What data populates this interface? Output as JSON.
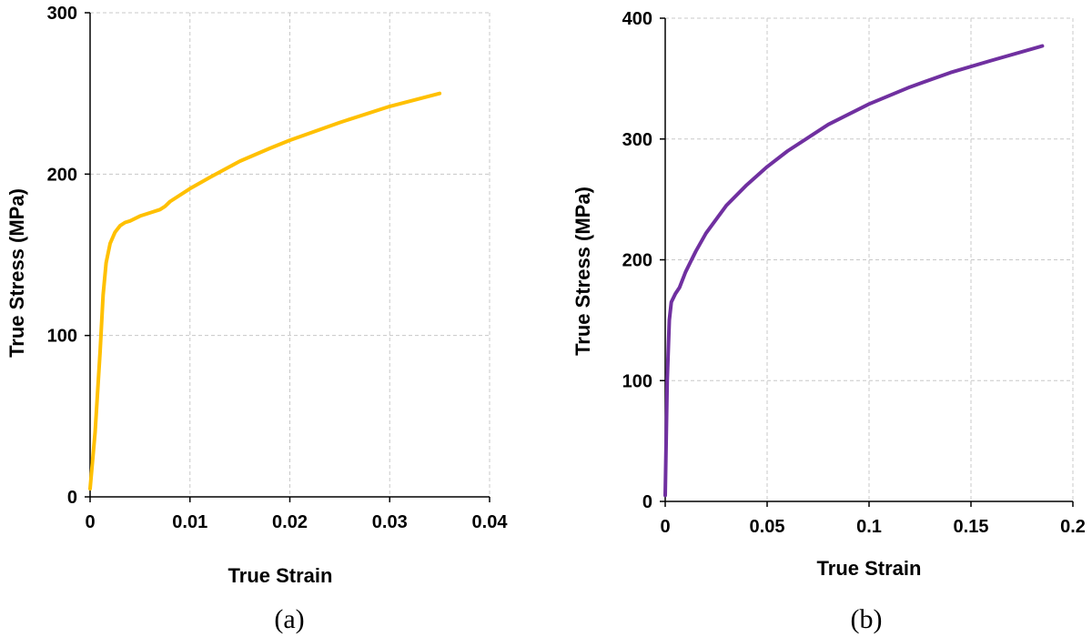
{
  "chart_data": [
    {
      "type": "line",
      "panel_label": "(a)",
      "xlabel": "True Strain",
      "ylabel": "True Stress (MPa)",
      "xlim": [
        0,
        0.04
      ],
      "ylim": [
        0,
        300
      ],
      "xticks": [
        0,
        0.01,
        0.02,
        0.03,
        0.04
      ],
      "xtick_labels": [
        "0",
        "0.01",
        "0.02",
        "0.03",
        "0.04"
      ],
      "yticks": [
        0,
        100,
        200,
        300
      ],
      "ytick_labels": [
        "0",
        "100",
        "200",
        "300"
      ],
      "grid": true,
      "legend": "none",
      "series": [
        {
          "color": "#FFC000",
          "x": [
            0,
            0.0005,
            0.001,
            0.0013,
            0.0016,
            0.002,
            0.0025,
            0.003,
            0.0035,
            0.004,
            0.005,
            0.006,
            0.007,
            0.0075,
            0.008,
            0.01,
            0.012,
            0.015,
            0.018,
            0.02,
            0.025,
            0.03,
            0.035
          ],
          "y": [
            5,
            40,
            90,
            125,
            145,
            157,
            164,
            168,
            170,
            171,
            174,
            176,
            178,
            180,
            183,
            191,
            198,
            208,
            216,
            221,
            232,
            242,
            250
          ]
        }
      ]
    },
    {
      "type": "line",
      "panel_label": "(b)",
      "xlabel": "True Strain",
      "ylabel": "True Stress (MPa)",
      "xlim": [
        0,
        0.2
      ],
      "ylim": [
        0,
        400
      ],
      "xticks": [
        0,
        0.05,
        0.1,
        0.15,
        0.2
      ],
      "xtick_labels": [
        "0",
        "0.05",
        "0.1",
        "0.15",
        "0.2"
      ],
      "yticks": [
        0,
        100,
        200,
        300,
        400
      ],
      "ytick_labels": [
        "0",
        "100",
        "200",
        "300",
        "400"
      ],
      "grid": true,
      "legend": "none",
      "series": [
        {
          "color": "#7030A0",
          "x": [
            0,
            0.001,
            0.002,
            0.003,
            0.005,
            0.007,
            0.01,
            0.015,
            0.02,
            0.03,
            0.04,
            0.05,
            0.06,
            0.08,
            0.1,
            0.12,
            0.14,
            0.16,
            0.185
          ],
          "y": [
            5,
            100,
            150,
            165,
            172,
            177,
            190,
            207,
            222,
            245,
            262,
            277,
            290,
            312,
            329,
            343,
            355,
            365,
            377
          ]
        }
      ]
    }
  ]
}
